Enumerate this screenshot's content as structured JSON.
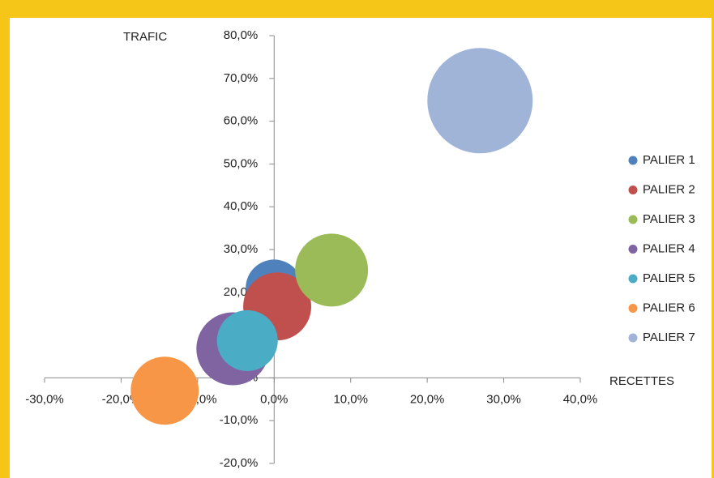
{
  "chart_data": {
    "type": "bubble",
    "x_label": "RECETTES",
    "y_label": "TRAFIC",
    "xlim": [
      -30,
      40
    ],
    "xticks": [
      {
        "value": -30,
        "label": "-30,0%"
      },
      {
        "value": -20,
        "label": "-20,0%"
      },
      {
        "value": -10,
        "label": "-10,0%"
      },
      {
        "value": 0,
        "label": "0,0%"
      },
      {
        "value": 10,
        "label": "10,0%"
      },
      {
        "value": 20,
        "label": "20,0%"
      },
      {
        "value": 30,
        "label": "30,0%"
      },
      {
        "value": 40,
        "label": "40,0%"
      }
    ],
    "ylim": [
      -20,
      80
    ],
    "yticks": [
      {
        "value": -20,
        "label": "-20,0%"
      },
      {
        "value": -10,
        "label": "-10,0%"
      },
      {
        "value": 0,
        "label": "0,0%"
      },
      {
        "value": 10,
        "label": "10,0%"
      },
      {
        "value": 20,
        "label": "20,0%"
      },
      {
        "value": 30,
        "label": "30,0%"
      },
      {
        "value": 40,
        "label": "40,0%"
      },
      {
        "value": 50,
        "label": "50,0%"
      },
      {
        "value": 60,
        "label": "60,0%"
      },
      {
        "value": 70,
        "label": "70,0%"
      },
      {
        "value": 80,
        "label": "80,0%"
      }
    ],
    "legend": "right",
    "series": [
      {
        "name": "PALIER 1",
        "color": "#4f81bd",
        "x": [
          0
        ],
        "values": [
          21
        ],
        "sizes": [
          0.7
        ]
      },
      {
        "name": "PALIER 2",
        "color": "#c0504d",
        "x": [
          0.4
        ],
        "values": [
          16.7
        ],
        "sizes": [
          1
        ]
      },
      {
        "name": "PALIER 3",
        "color": "#9bbb59",
        "x": [
          7.5
        ],
        "values": [
          25.2
        ],
        "sizes": [
          1.15
        ]
      },
      {
        "name": "PALIER 4",
        "color": "#8064a2",
        "x": [
          -5.4
        ],
        "values": [
          6.8
        ],
        "sizes": [
          1.15
        ]
      },
      {
        "name": "PALIER 5",
        "color": "#4bacc6",
        "x": [
          -3.5
        ],
        "values": [
          8.7
        ],
        "sizes": [
          0.8
        ]
      },
      {
        "name": "PALIER 6",
        "color": "#f79646",
        "x": [
          -14.3
        ],
        "values": [
          -3
        ],
        "sizes": [
          1
        ]
      },
      {
        "name": "PALIER 7",
        "color": "#a0b4d8",
        "x": [
          26.9
        ],
        "values": [
          64.8
        ],
        "sizes": [
          2.4
        ]
      }
    ]
  }
}
